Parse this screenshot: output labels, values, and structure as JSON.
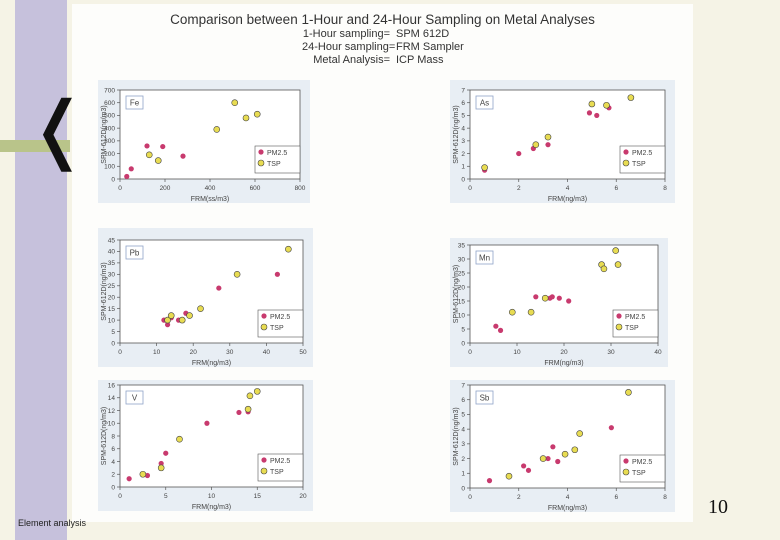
{
  "header": {
    "title": "Comparison between 1-Hour and 24-Hour Sampling on Metal Analyses",
    "definitions": [
      {
        "key": "1-Hour sampling=",
        "value": "SPM 612D"
      },
      {
        "key": "24-Hour sampling=",
        "value": "FRM Sampler"
      },
      {
        "key": "Metal Analysis=",
        "value": "ICP Mass"
      }
    ]
  },
  "footer": {
    "label": "Element analysis",
    "page_number": "10"
  },
  "colors": {
    "pm25": "#c83a6e",
    "tsp": "#e8dc52",
    "axis": "#555555",
    "panel_bg": "#e8eef4"
  },
  "chart_data": [
    {
      "type": "scatter",
      "name": "fe",
      "element": "Fe",
      "xlabel": "FRM(ss/m3)",
      "ylabel": "SPM-612D(ng/m3)",
      "xlim": [
        0,
        800
      ],
      "ylim": [
        0,
        700
      ],
      "xticks": [
        "0",
        "200",
        "400",
        "600",
        "800"
      ],
      "yticks": [
        "0",
        "100",
        "200",
        "300",
        "400",
        "500",
        "600",
        "700"
      ],
      "series": [
        {
          "name": "PM2.5",
          "points": [
            [
              30,
              20
            ],
            [
              50,
              80
            ],
            [
              120,
              260
            ],
            [
              190,
              255
            ],
            [
              280,
              180
            ]
          ]
        },
        {
          "name": "TSP",
          "points": [
            [
              130,
              190
            ],
            [
              170,
              145
            ],
            [
              430,
              390
            ],
            [
              510,
              600
            ],
            [
              560,
              480
            ],
            [
              610,
              510
            ]
          ]
        }
      ]
    },
    {
      "type": "scatter",
      "name": "as",
      "element": "As",
      "xlabel": "FRM(ng/m3)",
      "ylabel": "SPM-612D(ng/m3)",
      "xlim": [
        0,
        8
      ],
      "ylim": [
        0,
        7
      ],
      "xticks": [
        "0",
        "2",
        "4",
        "6",
        "8"
      ],
      "yticks": [
        "0",
        "1",
        "2",
        "3",
        "4",
        "5",
        "6",
        "7"
      ],
      "series": [
        {
          "name": "PM2.5",
          "points": [
            [
              0.6,
              0.7
            ],
            [
              2.0,
              2.0
            ],
            [
              2.6,
              2.4
            ],
            [
              3.2,
              2.7
            ],
            [
              4.9,
              5.2
            ],
            [
              5.2,
              5.0
            ],
            [
              5.7,
              5.6
            ]
          ]
        },
        {
          "name": "TSP",
          "points": [
            [
              0.6,
              0.9
            ],
            [
              2.7,
              2.7
            ],
            [
              3.2,
              3.3
            ],
            [
              5.0,
              5.9
            ],
            [
              5.6,
              5.8
            ],
            [
              6.6,
              6.4
            ]
          ]
        }
      ]
    },
    {
      "type": "scatter",
      "name": "pb",
      "element": "Pb",
      "xlabel": "FRM(ng/m3)",
      "ylabel": "SPM-612D(ng/m3)",
      "xlim": [
        0,
        50
      ],
      "ylim": [
        0,
        45
      ],
      "xticks": [
        "0",
        "10",
        "20",
        "30",
        "40",
        "50"
      ],
      "yticks": [
        "0",
        "5",
        "10",
        "15",
        "20",
        "25",
        "30",
        "35",
        "40",
        "45"
      ],
      "series": [
        {
          "name": "PM2.5",
          "points": [
            [
              12,
              10
            ],
            [
              13,
              8
            ],
            [
              14,
              11
            ],
            [
              16,
              10
            ],
            [
              18,
              13
            ],
            [
              27,
              24
            ],
            [
              43,
              30
            ]
          ]
        },
        {
          "name": "TSP",
          "points": [
            [
              13,
              10
            ],
            [
              14,
              12
            ],
            [
              17,
              10
            ],
            [
              19,
              12
            ],
            [
              22,
              15
            ],
            [
              32,
              30
            ],
            [
              46,
              41
            ]
          ]
        }
      ]
    },
    {
      "type": "scatter",
      "name": "mn",
      "element": "Mn",
      "xlabel": "FRM(ng/m3)",
      "ylabel": "SPM-612D(ng/m3)",
      "xlim": [
        0,
        40
      ],
      "ylim": [
        0,
        35
      ],
      "xticks": [
        "0",
        "10",
        "20",
        "30",
        "40"
      ],
      "yticks": [
        "0",
        "5",
        "10",
        "15",
        "20",
        "25",
        "30",
        "35"
      ],
      "series": [
        {
          "name": "PM2.5",
          "points": [
            [
              5.5,
              6
            ],
            [
              6.5,
              4.5
            ],
            [
              14,
              16.5
            ],
            [
              17,
              16
            ],
            [
              17.5,
              16.5
            ],
            [
              19,
              16
            ],
            [
              21,
              15
            ]
          ]
        },
        {
          "name": "TSP",
          "points": [
            [
              9,
              11
            ],
            [
              13,
              11
            ],
            [
              16,
              16
            ],
            [
              28,
              28
            ],
            [
              28.5,
              26.5
            ],
            [
              31,
              33
            ],
            [
              31.5,
              28
            ]
          ]
        }
      ]
    },
    {
      "type": "scatter",
      "name": "v",
      "element": "V",
      "xlabel": "FRM(ng/m3)",
      "ylabel": "SPM-612D(ng/m3)",
      "xlim": [
        0,
        20
      ],
      "ylim": [
        0,
        16
      ],
      "xticks": [
        "0",
        "5",
        "10",
        "15",
        "20"
      ],
      "yticks": [
        "0",
        "2",
        "4",
        "6",
        "8",
        "10",
        "12",
        "14",
        "16"
      ],
      "series": [
        {
          "name": "PM2.5",
          "points": [
            [
              1,
              1.3
            ],
            [
              3,
              1.8
            ],
            [
              4.5,
              3.7
            ],
            [
              5,
              5.3
            ],
            [
              9.5,
              10
            ],
            [
              13,
              11.7
            ],
            [
              14,
              11.8
            ]
          ]
        },
        {
          "name": "TSP",
          "points": [
            [
              2.5,
              2.0
            ],
            [
              4.5,
              3.0
            ],
            [
              6.5,
              7.5
            ],
            [
              14,
              12.2
            ],
            [
              14.2,
              14.3
            ],
            [
              15,
              15
            ]
          ]
        }
      ]
    },
    {
      "type": "scatter",
      "name": "sb",
      "element": "Sb",
      "xlabel": "FRM(ng/m3)",
      "ylabel": "SPM-612D(ng/m3)",
      "xlim": [
        0,
        8
      ],
      "ylim": [
        0,
        7
      ],
      "xticks": [
        "0",
        "2",
        "4",
        "6",
        "8"
      ],
      "yticks": [
        "0",
        "1",
        "2",
        "3",
        "4",
        "5",
        "6",
        "7"
      ],
      "series": [
        {
          "name": "PM2.5",
          "points": [
            [
              0.8,
              0.5
            ],
            [
              2.2,
              1.5
            ],
            [
              2.4,
              1.2
            ],
            [
              3.2,
              2.0
            ],
            [
              3.4,
              2.8
            ],
            [
              3.6,
              1.8
            ],
            [
              5.8,
              4.1
            ]
          ]
        },
        {
          "name": "TSP",
          "points": [
            [
              1.6,
              0.8
            ],
            [
              3.0,
              2.0
            ],
            [
              3.9,
              2.3
            ],
            [
              4.3,
              2.6
            ],
            [
              4.5,
              3.7
            ],
            [
              6.5,
              6.5
            ]
          ]
        }
      ]
    }
  ]
}
